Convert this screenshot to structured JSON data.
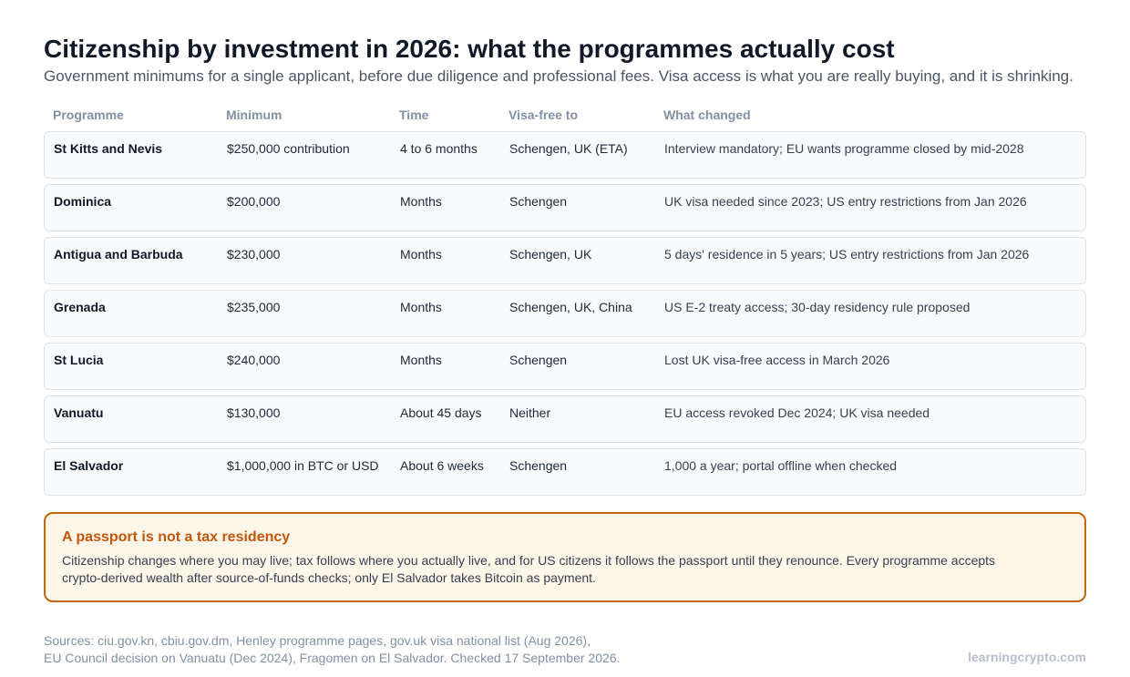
{
  "header": {
    "title": "Citizenship by investment in 2026: what the programmes actually cost",
    "subtitle": "Government minimums for a single applicant, before due diligence and professional fees. Visa access is what you are really buying, and it is shrinking."
  },
  "table": {
    "columns": [
      "Programme",
      "Minimum",
      "Time",
      "Visa-free to",
      "What changed"
    ],
    "rows": [
      [
        "St Kitts and Nevis",
        "$250,000 contribution",
        "4 to 6 months",
        "Schengen, UK (ETA)",
        "Interview mandatory; EU wants programme closed by mid-2028"
      ],
      [
        "Dominica",
        "$200,000",
        "Months",
        "Schengen",
        "UK visa needed since 2023; US entry restrictions from Jan 2026"
      ],
      [
        "Antigua and Barbuda",
        "$230,000",
        "Months",
        "Schengen, UK",
        "5 days' residence in 5 years; US entry restrictions from Jan 2026"
      ],
      [
        "Grenada",
        "$235,000",
        "Months",
        "Schengen, UK, China",
        "US E-2 treaty access; 30-day residency rule proposed"
      ],
      [
        "St Lucia",
        "$240,000",
        "Months",
        "Schengen",
        "Lost UK visa-free access in March 2026"
      ],
      [
        "Vanuatu",
        "$130,000",
        "About 45 days",
        "Neither",
        "EU access revoked Dec 2024; UK visa needed"
      ],
      [
        "El Salvador",
        "$1,000,000 in BTC or USD",
        "About 6 weeks",
        "Schengen",
        "1,000 a year; portal offline when checked"
      ]
    ]
  },
  "callout": {
    "title": "A passport is not a tax residency",
    "body": "Citizenship changes where you may live; tax follows where you actually live, and for US citizens it follows the passport until they renounce. Every programme accepts crypto-derived wealth after source-of-funds checks; only El Salvador takes Bitcoin as payment."
  },
  "footer": {
    "sources_line1": "Sources: ciu.gov.kn, cbiu.gov.dm, Henley programme pages, gov.uk visa national list (Aug 2026),",
    "sources_line2": "EU Council decision on Vanuatu (Dec 2024), Fragomen on El Salvador. Checked 17 September 2026.",
    "brand": "learningcrypto.com"
  },
  "colors": {
    "accent": "#c2570c",
    "callout_bg": "#fef6e9",
    "row_bg": "#f8fafc",
    "header_text": "#8290a6"
  }
}
